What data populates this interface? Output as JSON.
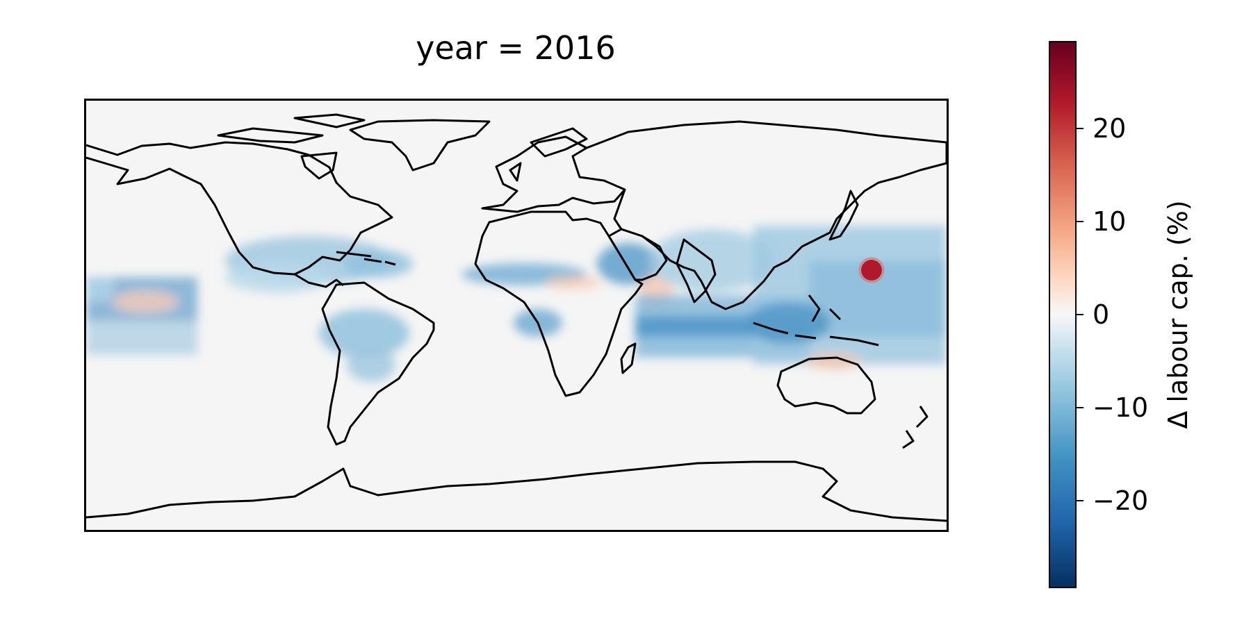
{
  "title": "year = 2016",
  "colorbar": {
    "label": "Δ labour cap. (%)",
    "ticks": [
      "20",
      "10",
      "0",
      "−10",
      "−20"
    ],
    "range": [
      -29,
      29
    ],
    "colormap": "RdBu_r"
  },
  "colors": {
    "land_outline": "#000000",
    "background": "#f5f5f5",
    "negative": "#2166ac",
    "positive": "#b2182b"
  }
}
